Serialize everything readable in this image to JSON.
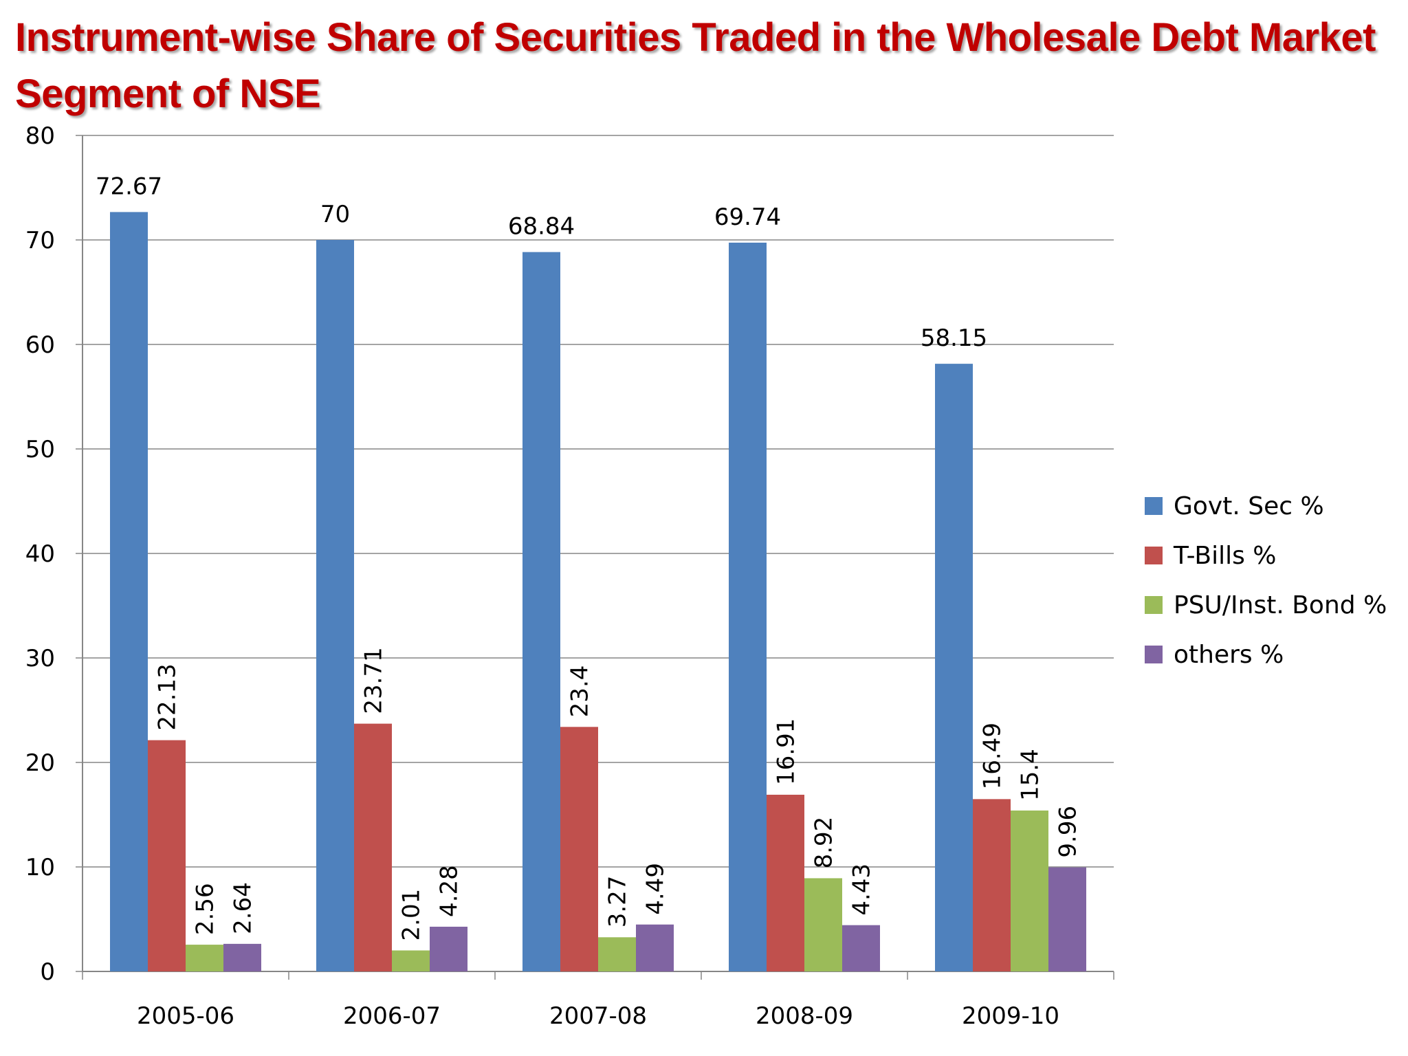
{
  "title": "Instrument-wise Share of Securities Traded in the Wholesale Debt Market Segment of NSE",
  "chart_data": {
    "type": "bar",
    "title": "Instrument-wise Share of Securities Traded in the Wholesale Debt Market Segment of NSE",
    "categories": [
      "2005-06",
      "2006-07",
      "2007-08",
      "2008-09",
      "2009-10"
    ],
    "series": [
      {
        "name": "Govt. Sec %",
        "color": "#4f81bd",
        "values": [
          72.67,
          70,
          68.84,
          69.74,
          58.15
        ],
        "value_labels": [
          "72.67",
          "70",
          "68.84",
          "69.74",
          "58.15"
        ]
      },
      {
        "name": "T-Bills %",
        "color": "#c0504d",
        "values": [
          22.13,
          23.71,
          23.4,
          16.91,
          16.49
        ],
        "value_labels": [
          "22.13",
          "23.71",
          "23.4",
          "16.91",
          "16.49"
        ]
      },
      {
        "name": "PSU/Inst. Bond %",
        "color": "#9bbb59",
        "values": [
          2.56,
          2.01,
          3.27,
          8.92,
          15.4
        ],
        "value_labels": [
          "2.56",
          "2.01",
          "3.27",
          "8.92",
          "15.4"
        ]
      },
      {
        "name": "others %",
        "color": "#8064a2",
        "values": [
          2.64,
          4.28,
          4.49,
          4.43,
          9.96
        ],
        "value_labels": [
          "2.64",
          "4.28",
          "4.49",
          "4.43",
          "9.96"
        ]
      }
    ],
    "ylim": [
      0,
      80
    ],
    "yticks": [
      0,
      10,
      20,
      30,
      40,
      50,
      60,
      70,
      80
    ],
    "ytick_labels": [
      "0",
      "10",
      "20",
      "30",
      "40",
      "50",
      "60",
      "70",
      "80"
    ],
    "xlabel": "",
    "ylabel": "",
    "grid": true,
    "legend_position": "right",
    "data_label_orientation": {
      "Govt. Sec %": "horizontal",
      "T-Bills %": "vertical",
      "PSU/Inst. Bond %": "vertical",
      "others %": "vertical"
    }
  }
}
